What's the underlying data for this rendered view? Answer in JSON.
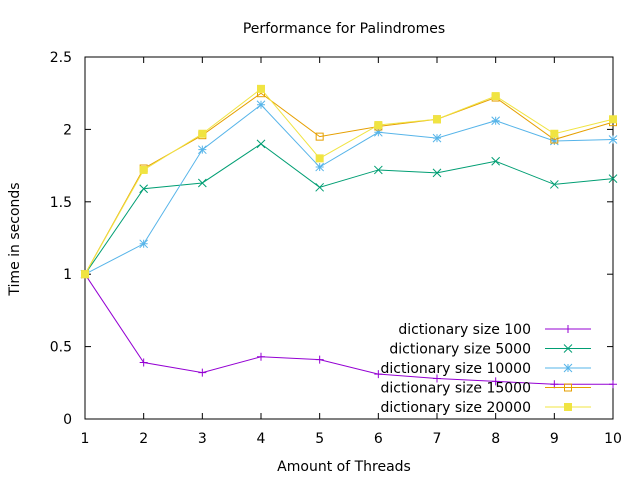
{
  "chart_data": {
    "type": "line",
    "title": "Performance for Palindromes",
    "xlabel": "Amount of Threads",
    "ylabel": "Time in seconds",
    "x": [
      1,
      2,
      3,
      4,
      5,
      6,
      7,
      8,
      9,
      10
    ],
    "xlim": [
      1,
      10
    ],
    "ylim": [
      0,
      2.5
    ],
    "xticks": [
      "1",
      "2",
      "3",
      "4",
      "5",
      "6",
      "7",
      "8",
      "9",
      "10"
    ],
    "yticks": [
      {
        "value": 0,
        "label": "0"
      },
      {
        "value": 0.5,
        "label": "0.5"
      },
      {
        "value": 1,
        "label": "1"
      },
      {
        "value": 1.5,
        "label": "1.5"
      },
      {
        "value": 2,
        "label": "2"
      },
      {
        "value": 2.5,
        "label": "2.5"
      }
    ],
    "grid": false,
    "legend_position": "bottom-right",
    "series": [
      {
        "name": "dictionary size 100",
        "color": "#9400d3",
        "marker": "plus",
        "values": [
          1.0,
          0.39,
          0.32,
          0.43,
          0.41,
          0.31,
          0.28,
          0.26,
          0.24,
          0.24
        ]
      },
      {
        "name": "dictionary size 5000",
        "color": "#009e73",
        "marker": "cross",
        "values": [
          1.0,
          1.59,
          1.63,
          1.9,
          1.6,
          1.72,
          1.7,
          1.78,
          1.62,
          1.66
        ]
      },
      {
        "name": "dictionary size 10000",
        "color": "#56b4e9",
        "marker": "star",
        "values": [
          1.0,
          1.21,
          1.86,
          2.17,
          1.74,
          1.98,
          1.94,
          2.06,
          1.92,
          1.93
        ]
      },
      {
        "name": "dictionary size 15000",
        "color": "#e69f00",
        "marker": "square-open",
        "values": [
          1.0,
          1.73,
          1.96,
          2.25,
          1.95,
          2.02,
          2.07,
          2.22,
          1.93,
          2.05
        ]
      },
      {
        "name": "dictionary size 20000",
        "color": "#f0e442",
        "marker": "square-filled",
        "values": [
          1.0,
          1.72,
          1.97,
          2.28,
          1.8,
          2.03,
          2.07,
          2.23,
          1.97,
          2.07
        ]
      }
    ]
  }
}
